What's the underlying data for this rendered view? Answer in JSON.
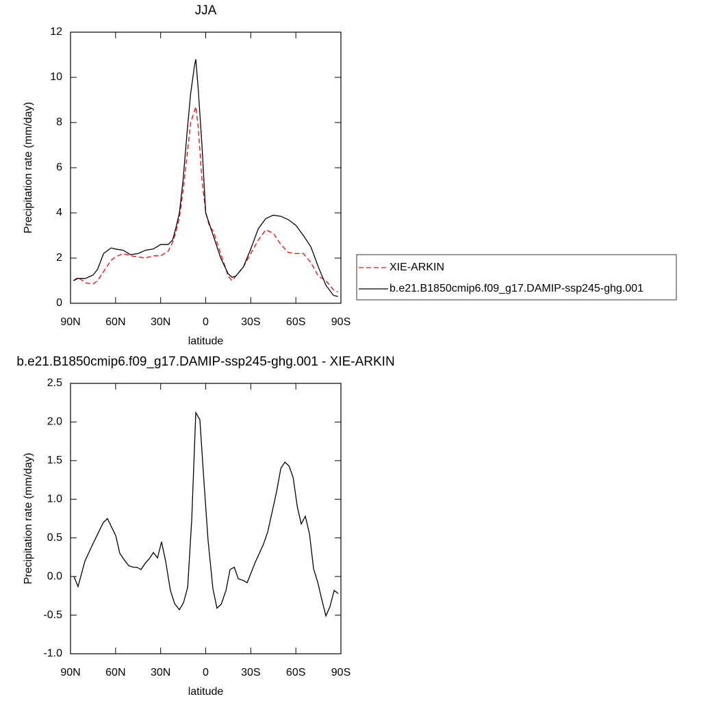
{
  "chart_data": [
    {
      "type": "line",
      "title": "JJA",
      "xlabel": "latitude",
      "ylabel": "Precipitation rate (mm/day)",
      "x": [
        88,
        85,
        80,
        75,
        72,
        68,
        63,
        60,
        55,
        50,
        45,
        40,
        35,
        30,
        25,
        22,
        20,
        17.5,
        15,
        12.5,
        10,
        7.5,
        6.6,
        5,
        2.5,
        0,
        -2.5,
        -5,
        -10,
        -15,
        -17.5,
        -20,
        -25,
        -30,
        -35,
        -40,
        -45,
        -50,
        -55,
        -60,
        -65,
        -70,
        -75,
        -80,
        -85,
        -88
      ],
      "series": [
        {
          "name": "XIE-ARKIN",
          "color": "#ff0000",
          "line_style": "dashed",
          "values": [
            1.0,
            1.15,
            0.9,
            0.85,
            1.0,
            1.4,
            1.9,
            2.05,
            2.2,
            2.1,
            2.05,
            2.0,
            2.1,
            2.1,
            2.3,
            2.7,
            3.1,
            3.8,
            5.0,
            6.5,
            8.0,
            8.5,
            8.7,
            7.8,
            5.5,
            4.0,
            3.4,
            3.2,
            2.2,
            1.2,
            1.0,
            1.2,
            1.6,
            2.2,
            2.8,
            3.25,
            3.1,
            2.6,
            2.25,
            2.2,
            2.2,
            1.8,
            1.2,
            1.0,
            0.6,
            0.5
          ]
        },
        {
          "name": "b.e21.B1850cmip6.f09_g17.DAMIP-ssp245-ghg.001",
          "color": "#000000",
          "line_style": "solid",
          "values": [
            1.0,
            1.1,
            1.1,
            1.25,
            1.5,
            2.2,
            2.45,
            2.4,
            2.35,
            2.15,
            2.2,
            2.35,
            2.4,
            2.6,
            2.6,
            2.8,
            3.3,
            4.0,
            5.5,
            7.5,
            9.3,
            10.5,
            10.8,
            9.5,
            7.0,
            4.0,
            3.5,
            3.0,
            2.0,
            1.3,
            1.15,
            1.2,
            1.6,
            2.4,
            3.3,
            3.75,
            3.9,
            3.85,
            3.7,
            3.45,
            3.0,
            2.5,
            1.6,
            0.8,
            0.35,
            0.3
          ]
        }
      ],
      "xlim": [
        90,
        -90
      ],
      "xticks": [
        {
          "value": 90,
          "label": "90N"
        },
        {
          "value": 60,
          "label": "60N"
        },
        {
          "value": 30,
          "label": "30N"
        },
        0,
        {
          "value": -30,
          "label": "30S"
        },
        {
          "value": -60,
          "label": "60S"
        },
        {
          "value": -90,
          "label": "90S"
        }
      ],
      "ylim": [
        0,
        12
      ],
      "yticks": [
        0,
        2,
        4,
        6,
        8,
        10,
        12
      ],
      "legend": "right"
    },
    {
      "type": "line",
      "title": "b.e21.B1850cmip6.f09_g17.DAMIP-ssp245-ghg.001 - XIE-ARKIN",
      "xlabel": "latitude",
      "ylabel": "Precipitation rate (mm/day)",
      "x": [
        87.7,
        85,
        80.4,
        75.4,
        70.4,
        68.1,
        65.4,
        62.7,
        59.9,
        57.2,
        54,
        51.3,
        48.1,
        45.8,
        43.1,
        40.3,
        37.6,
        34.8,
        32.1,
        29.4,
        26.6,
        23.5,
        20.7,
        17.5,
        14.8,
        12,
        9.3,
        6.6,
        3.9,
        1.1,
        -1.6,
        -4.8,
        -7.5,
        -10.3,
        -13.5,
        -16.2,
        -19,
        -21.7,
        -24.9,
        -27.6,
        -33.1,
        -38.5,
        -41.3,
        -44.5,
        -47.2,
        -50,
        -52.7,
        -55.5,
        -58.2,
        -61,
        -63.6,
        -66.3,
        -69.1,
        -71.8,
        -74.5,
        -77.3,
        -80,
        -82.7,
        -85.5,
        -88.2
      ],
      "values": [
        0.0,
        -0.13,
        0.2,
        0.41,
        0.61,
        0.7,
        0.75,
        0.64,
        0.53,
        0.3,
        0.21,
        0.14,
        0.12,
        0.12,
        0.09,
        0.17,
        0.23,
        0.31,
        0.24,
        0.45,
        0.19,
        -0.18,
        -0.35,
        -0.43,
        -0.34,
        -0.14,
        0.74,
        2.12,
        2.03,
        1.21,
        0.46,
        -0.16,
        -0.41,
        -0.36,
        -0.18,
        0.09,
        0.12,
        -0.03,
        -0.05,
        -0.08,
        0.19,
        0.42,
        0.58,
        0.86,
        1.1,
        1.4,
        1.48,
        1.43,
        1.28,
        0.9,
        0.68,
        0.78,
        0.55,
        0.1,
        -0.07,
        -0.3,
        -0.51,
        -0.39,
        -0.18,
        -0.22
      ],
      "color": "#000000",
      "xlim": [
        90,
        -90
      ],
      "xticks": [
        {
          "value": 90,
          "label": "90N"
        },
        {
          "value": 60,
          "label": "60N"
        },
        {
          "value": 30,
          "label": "30N"
        },
        0,
        {
          "value": -30,
          "label": "30S"
        },
        {
          "value": -60,
          "label": "60S"
        },
        {
          "value": -90,
          "label": "90S"
        }
      ],
      "ylim": [
        -1.0,
        2.5
      ],
      "yticks": [
        {
          "value": -1.0,
          "label": "-1.0"
        },
        -0.5,
        {
          "value": 0,
          "label": "0.0"
        },
        0.5,
        {
          "value": 1.0,
          "label": "1.0"
        },
        1.5,
        {
          "value": 2.0,
          "label": "2.0"
        },
        2.5
      ]
    }
  ]
}
